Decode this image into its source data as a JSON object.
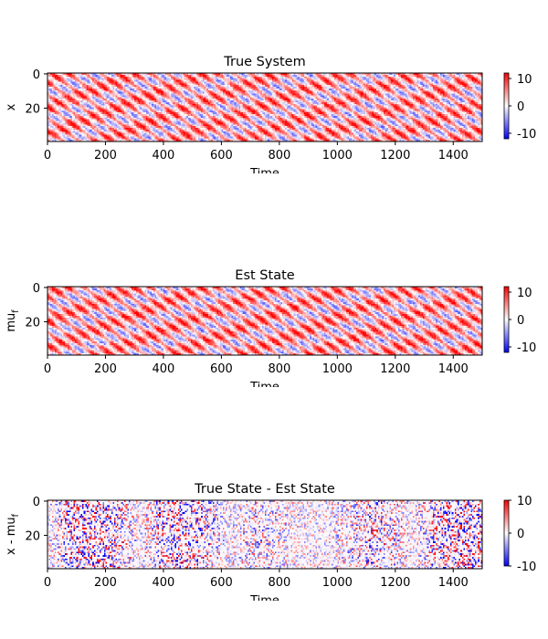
{
  "chart_data": [
    {
      "type": "heatmap",
      "title": "True System",
      "xlabel": "Time",
      "ylabel": "x",
      "ylabel_sub": "",
      "xlim": [
        0,
        1500
      ],
      "ylim": [
        39,
        0
      ],
      "xticks": [
        0,
        200,
        400,
        600,
        800,
        1000,
        1200,
        1400
      ],
      "yticks": [
        0,
        20
      ],
      "colorbar": {
        "range": [
          -12,
          12
        ],
        "ticks": [
          10,
          0,
          -10
        ]
      },
      "colormap": [
        "#0000ff",
        "#ffffff",
        "#ff0000"
      ],
      "value_character": "dense diagonal streaks, values mostly positive (0 to 12), few negatives"
    },
    {
      "type": "heatmap",
      "title": "Est State",
      "xlabel": "Time",
      "ylabel": "mu",
      "ylabel_sub": "f",
      "xlim": [
        0,
        1500
      ],
      "ylim": [
        39,
        0
      ],
      "xticks": [
        0,
        200,
        400,
        600,
        800,
        1000,
        1200,
        1400
      ],
      "yticks": [
        0,
        20
      ],
      "colorbar": {
        "range": [
          -12,
          12
        ],
        "ticks": [
          10,
          0,
          -10
        ]
      },
      "colormap": [
        "#0000ff",
        "#ffffff",
        "#ff0000"
      ],
      "value_character": "dense diagonal streaks, values mostly positive (0 to 12), few negatives"
    },
    {
      "type": "heatmap",
      "title": "True State - Est State",
      "xlabel": "Time",
      "ylabel": "x - mu",
      "ylabel_sub": "f",
      "xlim": [
        0,
        1500
      ],
      "ylim": [
        39,
        0
      ],
      "xticks": [
        0,
        200,
        400,
        600,
        800,
        1000,
        1200,
        1400
      ],
      "yticks": [
        0,
        20
      ],
      "colorbar": {
        "range": [
          -10,
          10
        ],
        "ticks": [
          10,
          0,
          -10
        ]
      },
      "colormap": [
        "#0000ff",
        "#ffffff",
        "#ff0000"
      ],
      "value_character": "sparse residual errors, mixed positive and negative, mostly near 0"
    }
  ]
}
